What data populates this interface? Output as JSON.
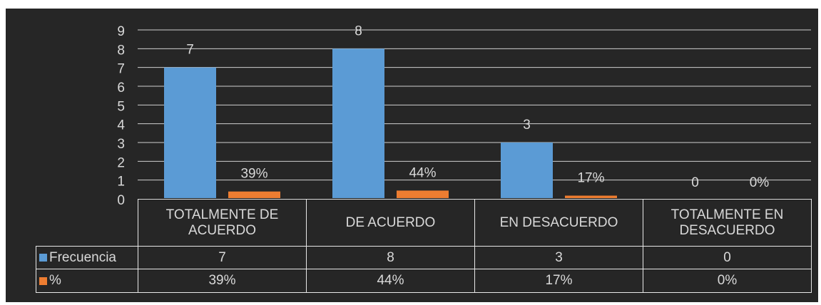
{
  "chart_data": {
    "type": "bar",
    "categories": [
      "TOTALMENTE DE ACUERDO",
      "DE ACUERDO",
      "EN DESACUERDO",
      "TOTALMENTE EN DESACUERDO"
    ],
    "series": [
      {
        "name": "Frecuencia",
        "color": "#5b9bd5",
        "values": [
          7,
          8,
          3,
          0
        ]
      },
      {
        "name": "%",
        "color": "#ed7d31",
        "values": [
          0.39,
          0.44,
          0.17,
          0
        ],
        "value_labels": [
          "39%",
          "44%",
          "17%",
          "0%"
        ]
      }
    ],
    "ylim": [
      0,
      9
    ],
    "yticks": [
      0,
      1,
      2,
      3,
      4,
      5,
      6,
      7,
      8,
      9
    ],
    "grid": true,
    "data_table": true
  }
}
